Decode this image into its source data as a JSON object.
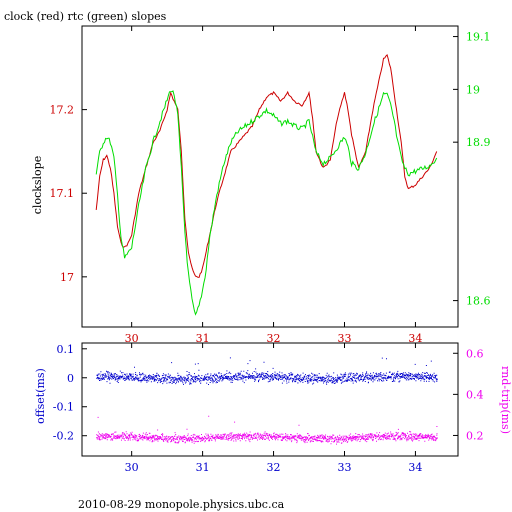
{
  "title": "clock (red) rtc (green) slopes",
  "footer": "2010-08-29  monopole.physics.ubc.ca",
  "colors": {
    "red": "#cc0000",
    "green": "#00dd00",
    "blue": "#0000cc",
    "magenta": "#ee00ee",
    "black": "#000000"
  },
  "chart_data": [
    {
      "type": "line",
      "title": "clock (red) rtc (green) slopes",
      "ylabel": "clockslope",
      "xlim": [
        29.3,
        34.6
      ],
      "x_ticks": [
        "30",
        "31",
        "32",
        "33",
        "34"
      ],
      "y_left": {
        "lim": [
          16.94,
          17.3
        ],
        "ticks": [
          "17",
          "17.1",
          "17.2"
        ],
        "tick_values": [
          17.0,
          17.1,
          17.2
        ]
      },
      "y_right": {
        "lim": [
          18.55,
          19.12
        ],
        "ticks": [
          "18.6",
          "18.9",
          "19",
          "19.1"
        ],
        "tick_values": [
          18.6,
          18.9,
          19.0,
          19.1
        ]
      },
      "series": [
        {
          "name": "clock",
          "color": "red",
          "axis": "left",
          "x": [
            29.5,
            29.55,
            29.6,
            29.65,
            29.7,
            29.75,
            29.8,
            29.85,
            29.9,
            29.95,
            30.0,
            30.1,
            30.2,
            30.3,
            30.4,
            30.5,
            30.55,
            30.6,
            30.65,
            30.7,
            30.75,
            30.8,
            30.85,
            30.9,
            30.95,
            31.0,
            31.05,
            31.1,
            31.2,
            31.3,
            31.4,
            31.5,
            31.6,
            31.7,
            31.8,
            31.9,
            32.0,
            32.1,
            32.2,
            32.3,
            32.4,
            32.5,
            32.55,
            32.6,
            32.7,
            32.8,
            32.9,
            33.0,
            33.05,
            33.1,
            33.2,
            33.3,
            33.4,
            33.5,
            33.55,
            33.6,
            33.65,
            33.7,
            33.75,
            33.8,
            33.85,
            33.9,
            34.0,
            34.1,
            34.2,
            34.3
          ],
          "y": [
            17.08,
            17.12,
            17.14,
            17.145,
            17.13,
            17.1,
            17.06,
            17.04,
            17.035,
            17.04,
            17.05,
            17.1,
            17.13,
            17.16,
            17.175,
            17.2,
            17.22,
            17.21,
            17.2,
            17.15,
            17.07,
            17.03,
            17.01,
            17.0,
            17.0,
            17.01,
            17.03,
            17.05,
            17.09,
            17.12,
            17.15,
            17.16,
            17.17,
            17.18,
            17.2,
            17.215,
            17.22,
            17.21,
            17.22,
            17.21,
            17.205,
            17.22,
            17.19,
            17.15,
            17.13,
            17.14,
            17.19,
            17.22,
            17.2,
            17.17,
            17.13,
            17.15,
            17.2,
            17.24,
            17.26,
            17.265,
            17.25,
            17.22,
            17.19,
            17.16,
            17.12,
            17.105,
            17.11,
            17.12,
            17.13,
            17.15
          ]
        },
        {
          "name": "rtc",
          "color": "green",
          "axis": "right",
          "x": [
            29.5,
            29.55,
            29.6,
            29.65,
            29.7,
            29.75,
            29.8,
            29.85,
            29.9,
            29.95,
            30.0,
            30.1,
            30.2,
            30.3,
            30.4,
            30.5,
            30.55,
            30.6,
            30.65,
            30.7,
            30.75,
            30.8,
            30.85,
            30.9,
            30.95,
            31.0,
            31.05,
            31.1,
            31.2,
            31.3,
            31.4,
            31.5,
            31.6,
            31.7,
            31.8,
            31.9,
            32.0,
            32.1,
            32.2,
            32.3,
            32.4,
            32.5,
            32.55,
            32.6,
            32.7,
            32.8,
            32.9,
            33.0,
            33.05,
            33.1,
            33.2,
            33.3,
            33.4,
            33.5,
            33.55,
            33.6,
            33.65,
            33.7,
            33.75,
            33.8,
            33.85,
            33.9,
            34.0,
            34.1,
            34.2,
            34.3
          ],
          "y": [
            18.84,
            18.88,
            18.9,
            18.91,
            18.9,
            18.87,
            18.8,
            18.72,
            18.68,
            18.69,
            18.7,
            18.78,
            18.85,
            18.9,
            18.94,
            18.98,
            19.0,
            18.99,
            18.95,
            18.85,
            18.73,
            18.65,
            18.6,
            18.57,
            18.59,
            18.62,
            18.66,
            18.72,
            18.8,
            18.86,
            18.9,
            18.92,
            18.93,
            18.94,
            18.95,
            18.96,
            18.95,
            18.935,
            18.94,
            18.93,
            18.925,
            18.94,
            18.91,
            18.88,
            18.86,
            18.87,
            18.89,
            18.91,
            18.89,
            18.86,
            18.85,
            18.88,
            18.93,
            18.97,
            18.99,
            18.99,
            18.97,
            18.94,
            18.9,
            18.87,
            18.85,
            18.84,
            18.845,
            18.85,
            18.855,
            18.87
          ]
        }
      ]
    },
    {
      "type": "scatter",
      "ylabel": "offset(ms)",
      "y2label": "rnd-trip(ms)",
      "xlim": [
        29.3,
        34.6
      ],
      "x_ticks": [
        "30",
        "31",
        "32",
        "33",
        "34"
      ],
      "y_left": {
        "lim": [
          -0.27,
          0.12
        ],
        "ticks": [
          "0.1",
          "0",
          "-0.1",
          "-0.2"
        ],
        "tick_values": [
          0.1,
          0.0,
          -0.1,
          -0.2
        ]
      },
      "y_right": {
        "lim": [
          0.1,
          0.65
        ],
        "ticks": [
          "0.6",
          "0.4",
          "0.2"
        ],
        "tick_values": [
          0.6,
          0.4,
          0.2
        ]
      },
      "series": [
        {
          "name": "offset",
          "color": "blue",
          "axis": "left",
          "x_range": [
            29.5,
            34.3
          ],
          "level": 0.0,
          "spread": 0.01
        },
        {
          "name": "rnd-trip",
          "color": "magenta",
          "axis": "right",
          "x_range": [
            29.5,
            34.3
          ],
          "level": 0.19,
          "spread": 0.012
        }
      ]
    }
  ]
}
